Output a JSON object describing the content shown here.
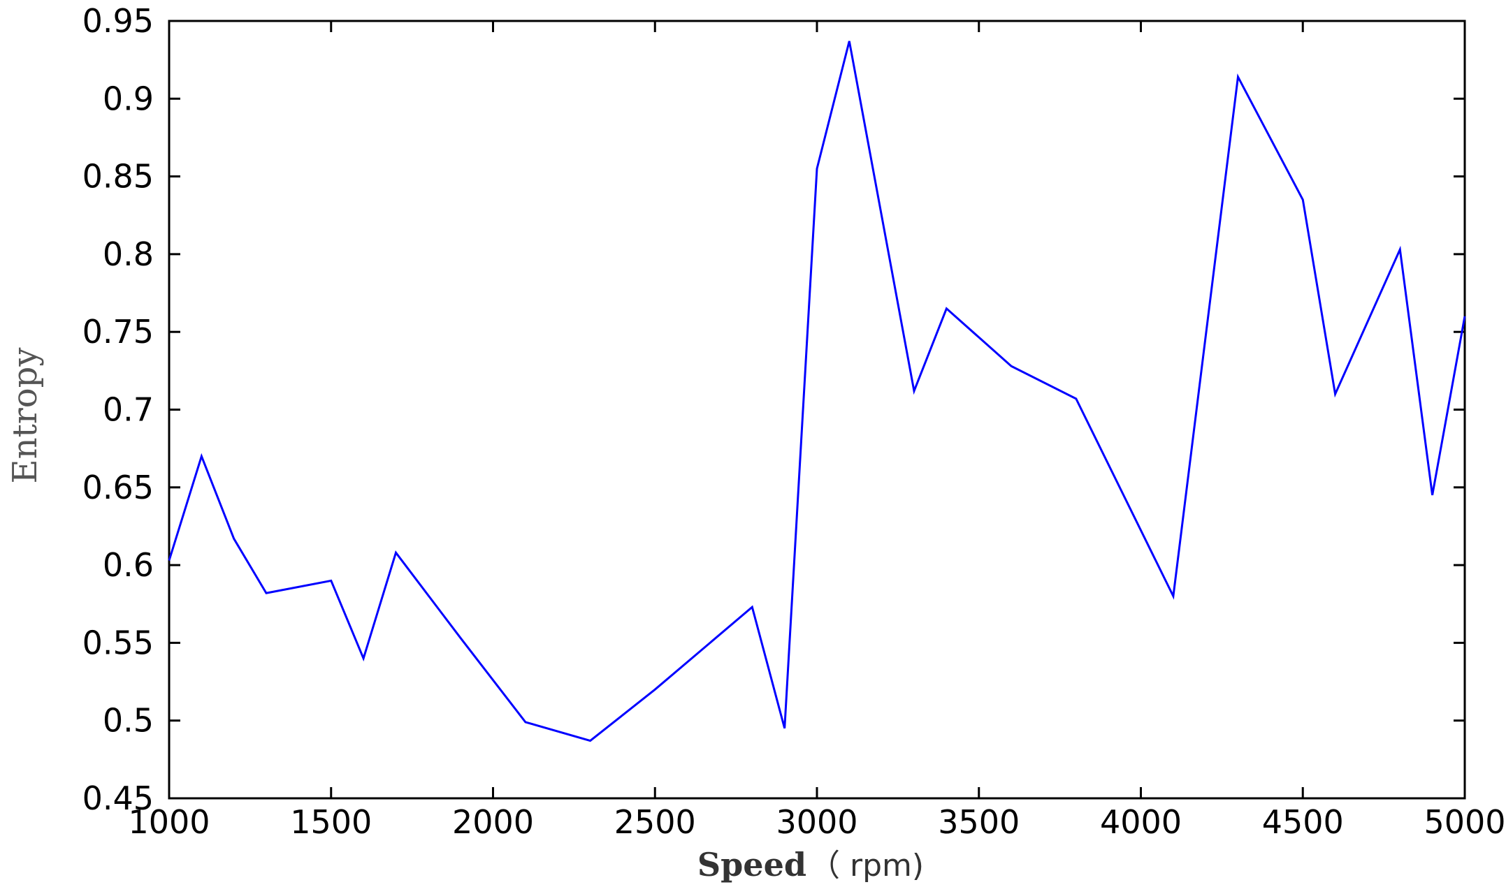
{
  "chart_data": {
    "type": "line",
    "title": "",
    "xlabel": "Speed",
    "xlabel_unit": "（ rpm)",
    "ylabel": "Entropy",
    "xlim": [
      1000,
      5000
    ],
    "ylim": [
      0.45,
      0.95
    ],
    "xticks": [
      "1000",
      "1500",
      "2000",
      "2500",
      "3000",
      "3500",
      "4000",
      "4500",
      "5000"
    ],
    "yticks": [
      "0.45",
      "0.5",
      "0.55",
      "0.6",
      "0.65",
      "0.7",
      "0.75",
      "0.8",
      "0.85",
      "0.9",
      "0.95"
    ],
    "grid": false,
    "line_color": "#0000ff",
    "series": [
      {
        "x": [
          1000,
          1100,
          1200,
          1300,
          1500,
          1600,
          1700,
          1900,
          2100,
          2300,
          2500,
          2800,
          2900,
          3000,
          3100,
          3300,
          3400,
          3600,
          3800,
          4100,
          4300,
          4500,
          4600,
          4800,
          4900,
          5000
        ],
        "values": [
          0.603,
          0.67,
          0.617,
          0.582,
          0.59,
          0.54,
          0.608,
          0.553,
          0.499,
          0.487,
          0.52,
          0.573,
          0.495,
          0.855,
          0.937,
          0.712,
          0.765,
          0.728,
          0.707,
          0.58,
          0.914,
          0.835,
          0.71,
          0.803,
          0.645,
          0.76
        ]
      }
    ]
  }
}
